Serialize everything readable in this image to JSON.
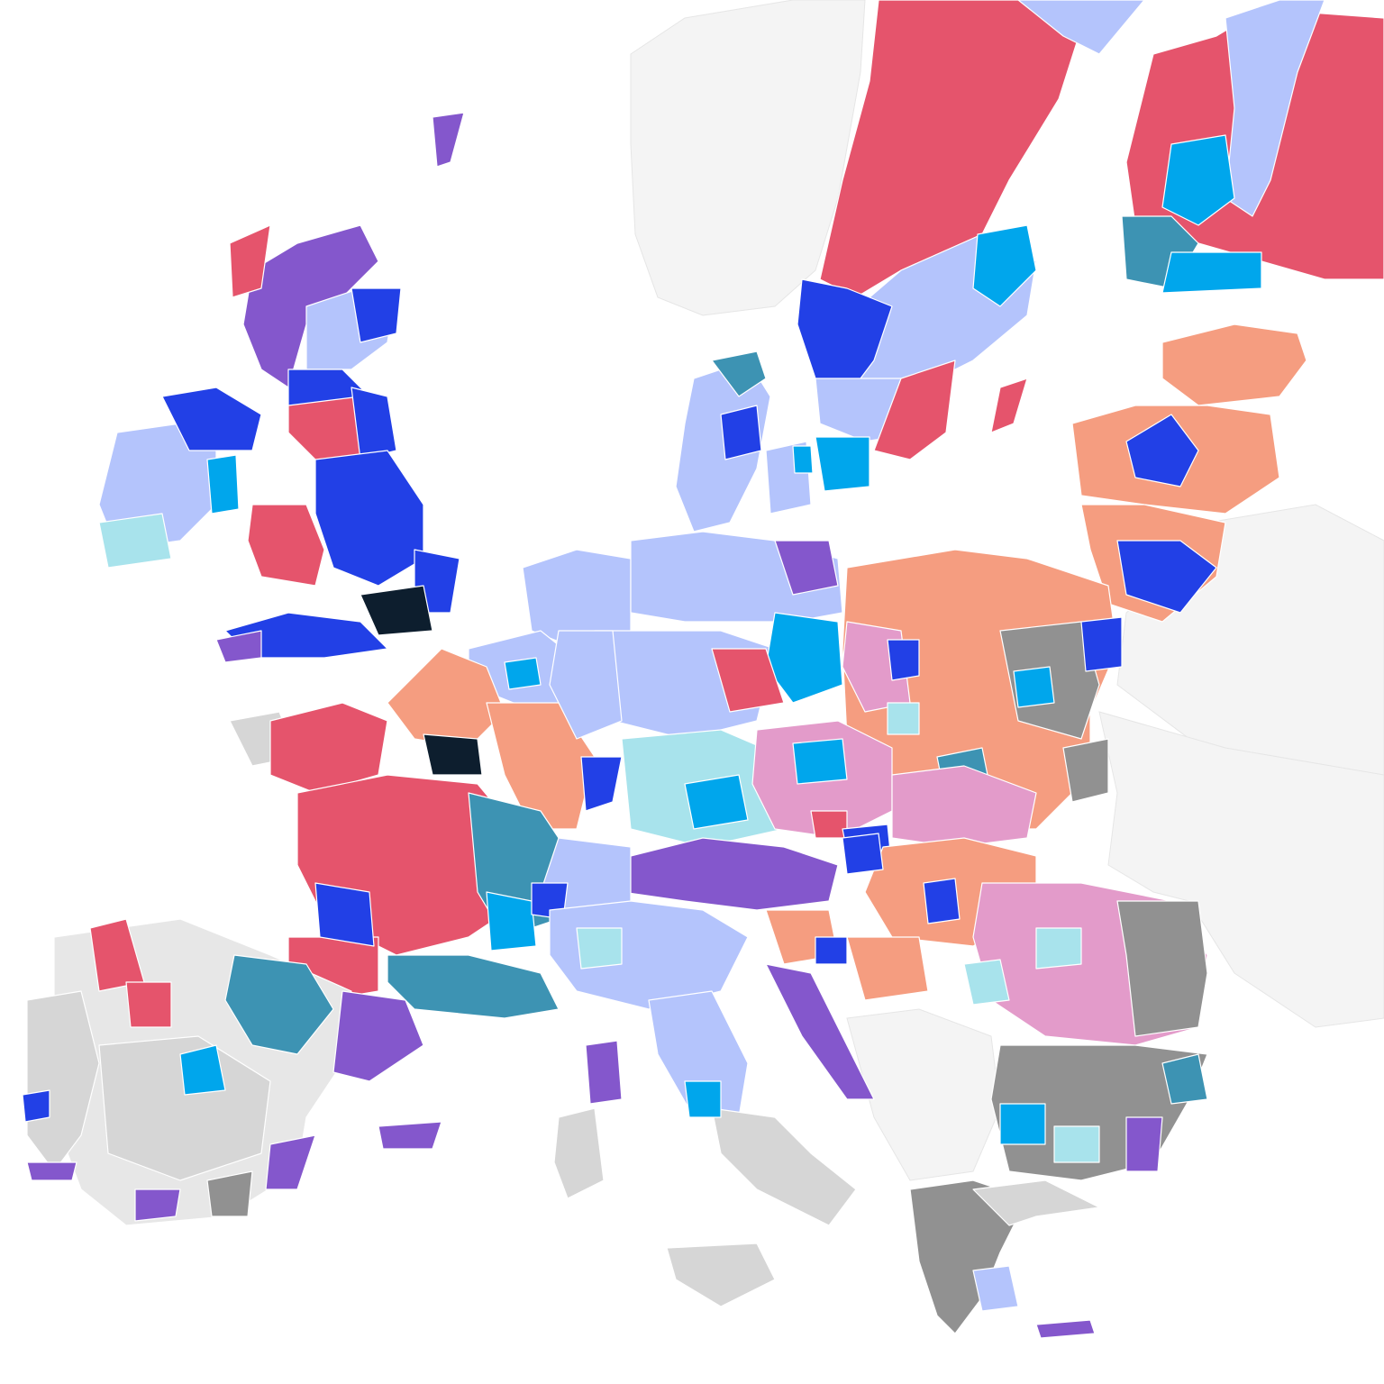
{
  "map": {
    "title": "",
    "background": "#ffffff",
    "ghost_land_color": "#f4f4f4",
    "border_color": "#ffffff",
    "colors": {
      "red": "#e5546c",
      "coral": "#f59d80",
      "pink": "#e39bca",
      "purple": "#8457cc",
      "navy": "#2240e6",
      "periwinkle": "#b4c4fc",
      "sky": "#00a6ec",
      "teal": "#3d93b3",
      "aqua": "#a8e3ec",
      "dark_grey": "#919191",
      "light_grey": "#d6d6d6",
      "pale_grey": "#e7e7e7",
      "black": "#0d1e2e"
    }
  }
}
